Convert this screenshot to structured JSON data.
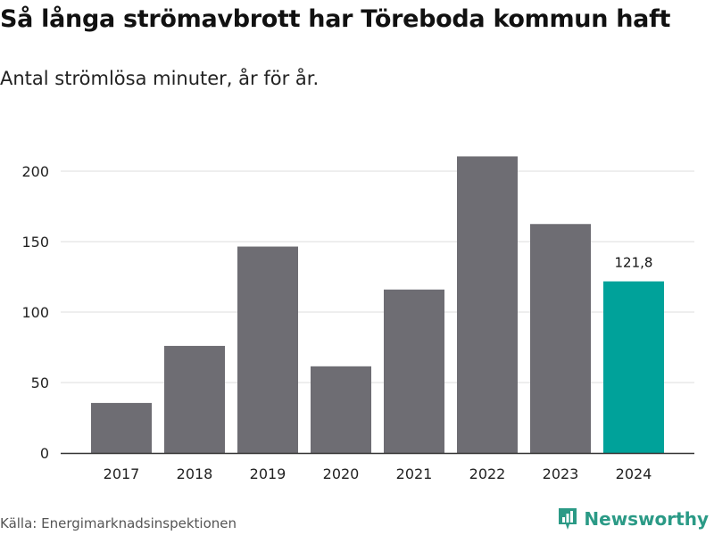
{
  "title": "Så långa strömavbrott har Töreboda kommun haft",
  "subtitle": "Antal strömlösa minuter, år för år.",
  "source": "Källa: Energimarknadsinspektionen",
  "brand": {
    "name": "Newsworthy",
    "icon": "newsworthy-logo-icon"
  },
  "colors": {
    "bar": "#6e6d73",
    "highlight": "#00a29a",
    "grid": "#dddddd",
    "axis": "#333333",
    "brand": "#2b9a86"
  },
  "chart_data": {
    "type": "bar",
    "title": "Så långa strömavbrott har Töreboda kommun haft",
    "subtitle": "Antal strömlösa minuter, år för år.",
    "xlabel": "",
    "ylabel": "",
    "categories": [
      "2017",
      "2018",
      "2019",
      "2020",
      "2021",
      "2022",
      "2023",
      "2024"
    ],
    "values": [
      35.5,
      76,
      146.5,
      61.5,
      116,
      210.5,
      162.5,
      121.8
    ],
    "highlight_index": 7,
    "data_labels": [
      {
        "index": 7,
        "text": "121,8"
      }
    ],
    "yticks": [
      0,
      50,
      100,
      150,
      200
    ],
    "ylim": [
      0,
      215
    ],
    "grid": true
  }
}
